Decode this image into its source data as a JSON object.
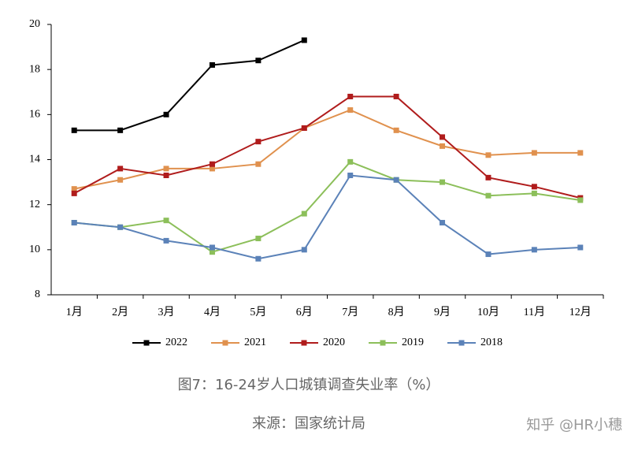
{
  "chart_data": {
    "type": "line",
    "categories": [
      "1月",
      "2月",
      "3月",
      "4月",
      "5月",
      "6月",
      "7月",
      "8月",
      "9月",
      "10月",
      "11月",
      "12月"
    ],
    "series": [
      {
        "name": "2022",
        "color": "#000000",
        "values": [
          15.3,
          15.3,
          16.0,
          18.2,
          18.4,
          19.3,
          null,
          null,
          null,
          null,
          null,
          null
        ]
      },
      {
        "name": "2021",
        "color": "#e0914e",
        "values": [
          12.7,
          13.1,
          13.6,
          13.6,
          13.8,
          15.4,
          16.2,
          15.3,
          14.6,
          14.2,
          14.3,
          14.3
        ]
      },
      {
        "name": "2020",
        "color": "#b01c1c",
        "values": [
          12.5,
          13.6,
          13.3,
          13.8,
          14.8,
          15.4,
          16.8,
          16.8,
          15.0,
          13.2,
          12.8,
          12.3
        ]
      },
      {
        "name": "2019",
        "color": "#8cbf5a",
        "values": [
          11.2,
          11.0,
          11.3,
          9.9,
          10.5,
          11.6,
          13.9,
          13.1,
          13.0,
          12.4,
          12.5,
          12.2
        ]
      },
      {
        "name": "2018",
        "color": "#5b82b8",
        "values": [
          11.2,
          11.0,
          10.4,
          10.1,
          9.6,
          10.0,
          13.3,
          13.1,
          11.2,
          9.8,
          10.0,
          10.1
        ]
      }
    ],
    "ylim": [
      8,
      20
    ],
    "yticks": [
      8,
      10,
      12,
      14,
      16,
      18,
      20
    ],
    "grid": false,
    "legend": "bottom",
    "caption": "图7：16-24岁人口城镇调查失业率（%）",
    "source": "来源：国家统计局",
    "watermark": "知乎 @HR小穗"
  }
}
